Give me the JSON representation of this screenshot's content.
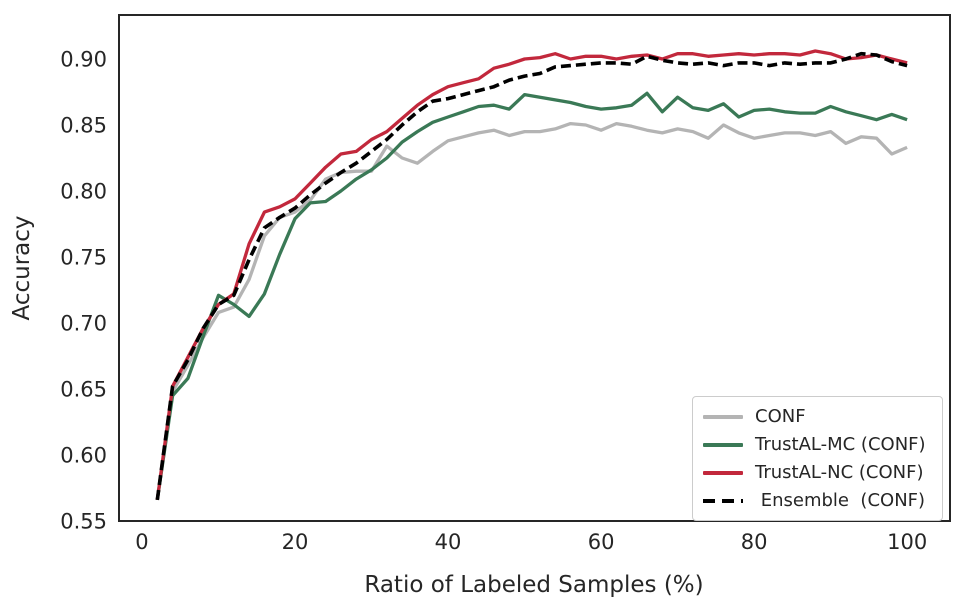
{
  "figure": {
    "xlabel": "Ratio of Labeled Samples (%)",
    "ylabel": "Accuracy"
  },
  "chart_data": {
    "type": "line",
    "title": "",
    "xlabel": "Ratio of Labeled Samples (%)",
    "ylabel": "Accuracy",
    "grid": false,
    "legend_position": "lower right",
    "xlim": [
      -3.0,
      105.6
    ],
    "ylim": [
      0.55,
      0.9333
    ],
    "x_ticks": [
      0,
      20,
      40,
      60,
      80,
      100
    ],
    "y_ticks": [
      0.55,
      0.6,
      0.65,
      0.7,
      0.75,
      0.8,
      0.85,
      0.9
    ],
    "x": [
      2,
      4,
      6,
      8,
      10,
      12,
      14,
      16,
      18,
      20,
      22,
      24,
      26,
      28,
      30,
      32,
      34,
      36,
      38,
      40,
      42,
      44,
      46,
      48,
      50,
      52,
      54,
      56,
      58,
      60,
      62,
      64,
      66,
      68,
      70,
      72,
      74,
      76,
      78,
      80,
      82,
      84,
      86,
      88,
      90,
      92,
      94,
      96,
      98,
      100
    ],
    "series": [
      {
        "name": "CONF",
        "color": "#b4b4b4",
        "dash": false,
        "values": [
          0.566,
          0.648,
          0.668,
          0.689,
          0.708,
          0.712,
          0.733,
          0.766,
          0.78,
          0.784,
          0.793,
          0.809,
          0.814,
          0.815,
          0.815,
          0.834,
          0.825,
          0.821,
          0.83,
          0.838,
          0.841,
          0.844,
          0.846,
          0.842,
          0.845,
          0.845,
          0.847,
          0.851,
          0.85,
          0.846,
          0.851,
          0.849,
          0.846,
          0.844,
          0.847,
          0.845,
          0.84,
          0.85,
          0.844,
          0.84,
          0.842,
          0.844,
          0.844,
          0.842,
          0.845,
          0.836,
          0.841,
          0.84,
          0.828,
          0.833
        ]
      },
      {
        "name": "TrustAL-MC (CONF)",
        "color": "#3a7956",
        "dash": false,
        "values": [
          0.566,
          0.645,
          0.658,
          0.69,
          0.721,
          0.714,
          0.705,
          0.722,
          0.752,
          0.779,
          0.791,
          0.792,
          0.8,
          0.809,
          0.816,
          0.825,
          0.837,
          0.845,
          0.852,
          0.856,
          0.86,
          0.864,
          0.865,
          0.862,
          0.873,
          0.871,
          0.869,
          0.867,
          0.864,
          0.862,
          0.863,
          0.865,
          0.874,
          0.86,
          0.871,
          0.863,
          0.861,
          0.866,
          0.856,
          0.861,
          0.862,
          0.86,
          0.859,
          0.859,
          0.864,
          0.86,
          0.857,
          0.854,
          0.858,
          0.854
        ]
      },
      {
        "name": "TrustAL-NC (CONF)",
        "color": "#c2283c",
        "dash": false,
        "values": [
          0.566,
          0.652,
          0.674,
          0.696,
          0.714,
          0.722,
          0.76,
          0.784,
          0.788,
          0.794,
          0.806,
          0.818,
          0.828,
          0.83,
          0.839,
          0.845,
          0.855,
          0.865,
          0.873,
          0.879,
          0.882,
          0.885,
          0.893,
          0.896,
          0.9,
          0.901,
          0.904,
          0.9,
          0.902,
          0.902,
          0.9,
          0.902,
          0.903,
          0.9,
          0.904,
          0.904,
          0.902,
          0.903,
          0.904,
          0.903,
          0.904,
          0.904,
          0.903,
          0.906,
          0.904,
          0.9,
          0.901,
          0.903,
          0.9,
          0.897
        ]
      },
      {
        "name": " Ensemble  (CONF)",
        "color": "#000000",
        "dash": true,
        "values": [
          0.566,
          0.652,
          0.672,
          0.696,
          0.714,
          0.721,
          0.748,
          0.772,
          0.78,
          0.787,
          0.797,
          0.806,
          0.814,
          0.821,
          0.83,
          0.839,
          0.85,
          0.86,
          0.868,
          0.87,
          0.873,
          0.876,
          0.879,
          0.884,
          0.887,
          0.889,
          0.894,
          0.895,
          0.896,
          0.897,
          0.897,
          0.896,
          0.902,
          0.899,
          0.897,
          0.896,
          0.897,
          0.895,
          0.897,
          0.897,
          0.895,
          0.897,
          0.896,
          0.897,
          0.897,
          0.9,
          0.904,
          0.903,
          0.898,
          0.895
        ]
      }
    ],
    "axis_color": "#262626",
    "tick_font_px": 21
  }
}
